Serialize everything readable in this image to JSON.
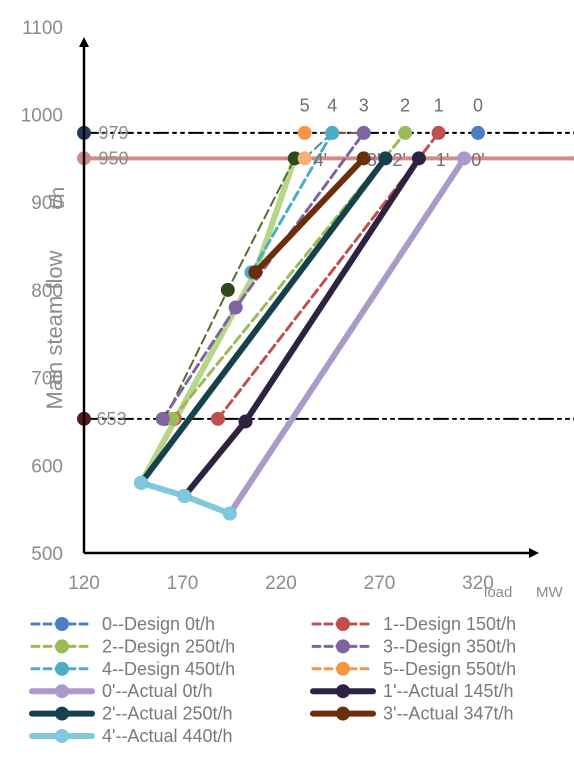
{
  "chart_data": {
    "type": "line",
    "title": "",
    "xlabel": "load",
    "xunit": "MW",
    "ylabel": "Main steam flow",
    "yunit": "t/h",
    "xlim": [
      120,
      370
    ],
    "ylim": [
      500,
      1100
    ],
    "xticks": [
      120,
      170,
      220,
      270,
      320
    ],
    "yticks": [
      500,
      600,
      700,
      800,
      900,
      1000,
      1100
    ],
    "grid": false,
    "legend_position": "bottom",
    "reference_lines": [
      {
        "label": "979",
        "y": 979,
        "color": "#000000",
        "style": "dashdot",
        "marker": "#1f3b5e",
        "x": [
          120,
          372
        ]
      },
      {
        "label": "950",
        "y": 950,
        "color": "#d48a8a",
        "style": "solid",
        "marker": "#d48a8a",
        "x": [
          120,
          372
        ]
      },
      {
        "label": "653",
        "y": 653,
        "color": "#000000",
        "style": "dashdot",
        "marker": "#5a1a1a",
        "x": [
          120,
          372
        ]
      }
    ],
    "series": [
      {
        "name": "0--Design 0t/h",
        "label": "0",
        "color": "#4a7fc1",
        "style": "dashed",
        "width": 3,
        "points": [
          [
            320,
            979
          ]
        ]
      },
      {
        "name": "1--Design 150t/h",
        "label": "1",
        "color": "#c0504d",
        "style": "dashed",
        "width": 3,
        "points": [
          [
            188,
            653
          ],
          [
            300,
            979
          ]
        ]
      },
      {
        "name": "2--Design 250t/h",
        "label": "2",
        "color": "#9bbb59",
        "style": "dashed",
        "width": 3,
        "points": [
          [
            165,
            653
          ],
          [
            283,
            979
          ]
        ]
      },
      {
        "name": "3--Design 350t/h",
        "label": "3",
        "color": "#8064a2",
        "style": "dashed",
        "width": 3,
        "points": [
          [
            160,
            653
          ],
          [
            197,
            780
          ],
          [
            262,
            979
          ]
        ]
      },
      {
        "name": "4--Design 450t/h",
        "label": "4",
        "color": "#4bacc6",
        "style": "dashed",
        "width": 3,
        "points": [
          [
            205,
            820
          ],
          [
            246,
            979
          ]
        ]
      },
      {
        "name": "5--Design 550t/h",
        "label": "5",
        "color": "#f79646",
        "style": "dashed",
        "width": 3,
        "points": [
          [
            232,
            979
          ]
        ]
      },
      {
        "name": "0'--Actual 0t/h",
        "label": "0'",
        "color": "#ab9ac9",
        "style": "solid",
        "width": 6,
        "points": [
          [
            194,
            545
          ],
          [
            313,
            950
          ]
        ]
      },
      {
        "name": "1'--Actual 145t/h",
        "label": "1'",
        "color": "#2d2340",
        "style": "solid",
        "width": 6,
        "points": [
          [
            171,
            565
          ],
          [
            202,
            650
          ],
          [
            290,
            950
          ]
        ]
      },
      {
        "name": "2'--Actual 250t/h",
        "label": "2'",
        "color": "#17414a",
        "style": "solid",
        "width": 6,
        "points": [
          [
            149,
            580
          ],
          [
            273,
            950
          ]
        ]
      },
      {
        "name": "3'--Actual 347t/h",
        "label": "3'",
        "color": "#6a2e0a",
        "style": "solid",
        "width": 6,
        "points": [
          [
            207,
            820
          ],
          [
            262,
            950
          ]
        ]
      },
      {
        "name": "4'--Actual 440t/h",
        "label": "4'",
        "color": "#7fc8dd",
        "style": "solid",
        "width": 6,
        "points": [
          [
            149,
            580
          ],
          [
            171,
            565
          ],
          [
            194,
            545
          ]
        ]
      }
    ],
    "extra_lines": [
      {
        "color": "#b6d78a",
        "width": 6,
        "points": [
          [
            149,
            580
          ],
          [
            207,
            820
          ],
          [
            227,
            950
          ]
        ]
      },
      {
        "color": "#556b2f",
        "width": 2,
        "style": "dashed",
        "points": [
          [
            161,
            653
          ],
          [
            193,
            800
          ],
          [
            227,
            950
          ]
        ]
      },
      {
        "color": "#4a8fa0",
        "width": 2,
        "style": "dashed",
        "points": [
          [
            232,
            950
          ],
          [
            246,
            979
          ]
        ]
      },
      {
        "color": "#7b5b3a",
        "width": 2,
        "style": "dashed",
        "points": [
          [
            241,
            979
          ],
          [
            262,
            979
          ]
        ]
      }
    ],
    "extra_markers": [
      {
        "x": 161,
        "y": 653,
        "color": "#2f4a1a"
      },
      {
        "x": 193,
        "y": 800,
        "color": "#2f4a1a"
      },
      {
        "x": 227,
        "y": 950,
        "color": "#2f4a1a"
      },
      {
        "x": 232,
        "y": 950,
        "color": "#f7b07a"
      },
      {
        "x": 188,
        "y": 653,
        "color": "#b6d78a"
      },
      {
        "x": 166,
        "y": 653,
        "color": "#c0504d"
      }
    ],
    "point_labels": [
      {
        "text": "5",
        "x": 232,
        "y": 1010
      },
      {
        "text": "4",
        "x": 246,
        "y": 1010
      },
      {
        "text": "3",
        "x": 262,
        "y": 1010
      },
      {
        "text": "2",
        "x": 283,
        "y": 1010
      },
      {
        "text": "1",
        "x": 300,
        "y": 1010
      },
      {
        "text": "0",
        "x": 320,
        "y": 1010
      },
      {
        "text": "4'",
        "x": 240,
        "y": 948
      },
      {
        "text": "3'",
        "x": 267,
        "y": 948
      },
      {
        "text": "2'",
        "x": 280,
        "y": 948
      },
      {
        "text": "1'",
        "x": 302,
        "y": 948
      },
      {
        "text": "0'",
        "x": 320,
        "y": 948
      },
      {
        "text": "653",
        "x": 134,
        "y": 653
      },
      {
        "text": "979",
        "x": 135,
        "y": 979
      },
      {
        "text": "950",
        "x": 135,
        "y": 950
      }
    ]
  }
}
